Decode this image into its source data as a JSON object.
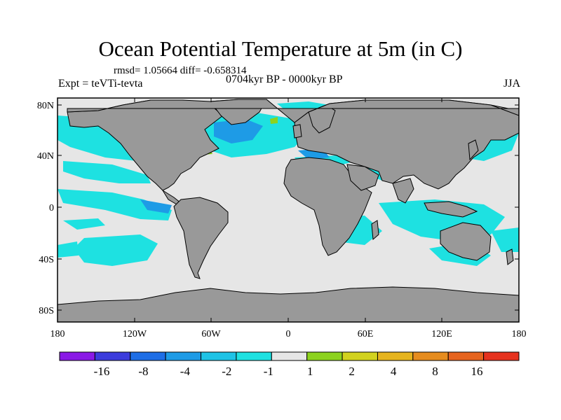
{
  "title": "Ocean Potential Temperature at 5m (in C)",
  "stats": "rmsd= 1.05664 diff= -0.658314",
  "expt": "Expt = teVTi-tevta",
  "period": "0704kyr BP - 0000kyr BP",
  "season": "JJA",
  "lon_ticks": [
    "180",
    "120W",
    "60W",
    "0",
    "60E",
    "120E",
    "180"
  ],
  "lat_ticks": [
    "80N",
    "40N",
    "0",
    "40S",
    "80S"
  ],
  "colorbar": {
    "colors": [
      "#8a19e6",
      "#3c3cdc",
      "#1e6ee6",
      "#1e9be6",
      "#1ec3e6",
      "#1ee1e1",
      "#e6e6e6",
      "#8cd21e",
      "#d2d21e",
      "#e6b41e",
      "#e68c1e",
      "#e6641e",
      "#e6321e"
    ],
    "labels": [
      "-16",
      "-8",
      "-4",
      "-2",
      "-1",
      "1",
      "2",
      "4",
      "8",
      "16"
    ]
  },
  "colors": {
    "land": "#999999",
    "ocean": "#e6e6e6",
    "coast": "#000000"
  }
}
